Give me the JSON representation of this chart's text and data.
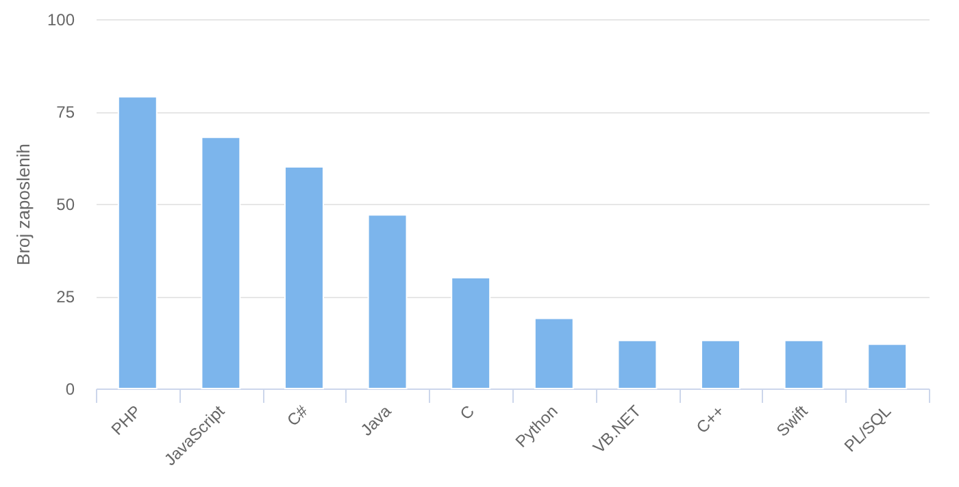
{
  "chart_data": {
    "type": "bar",
    "ylabel": "Broj zaposlenih",
    "categories": [
      "PHP",
      "JavaScript",
      "C#",
      "Java",
      "C",
      "Python",
      "VB.NET",
      "C++",
      "Swift",
      "PL/SQL"
    ],
    "values": [
      79,
      68,
      60,
      47,
      30,
      19,
      13,
      13,
      13,
      12
    ],
    "color": "#7cb5ec",
    "ylim": [
      0,
      100
    ],
    "yticks": [
      0,
      25,
      50,
      75,
      100
    ],
    "grid": "y"
  }
}
